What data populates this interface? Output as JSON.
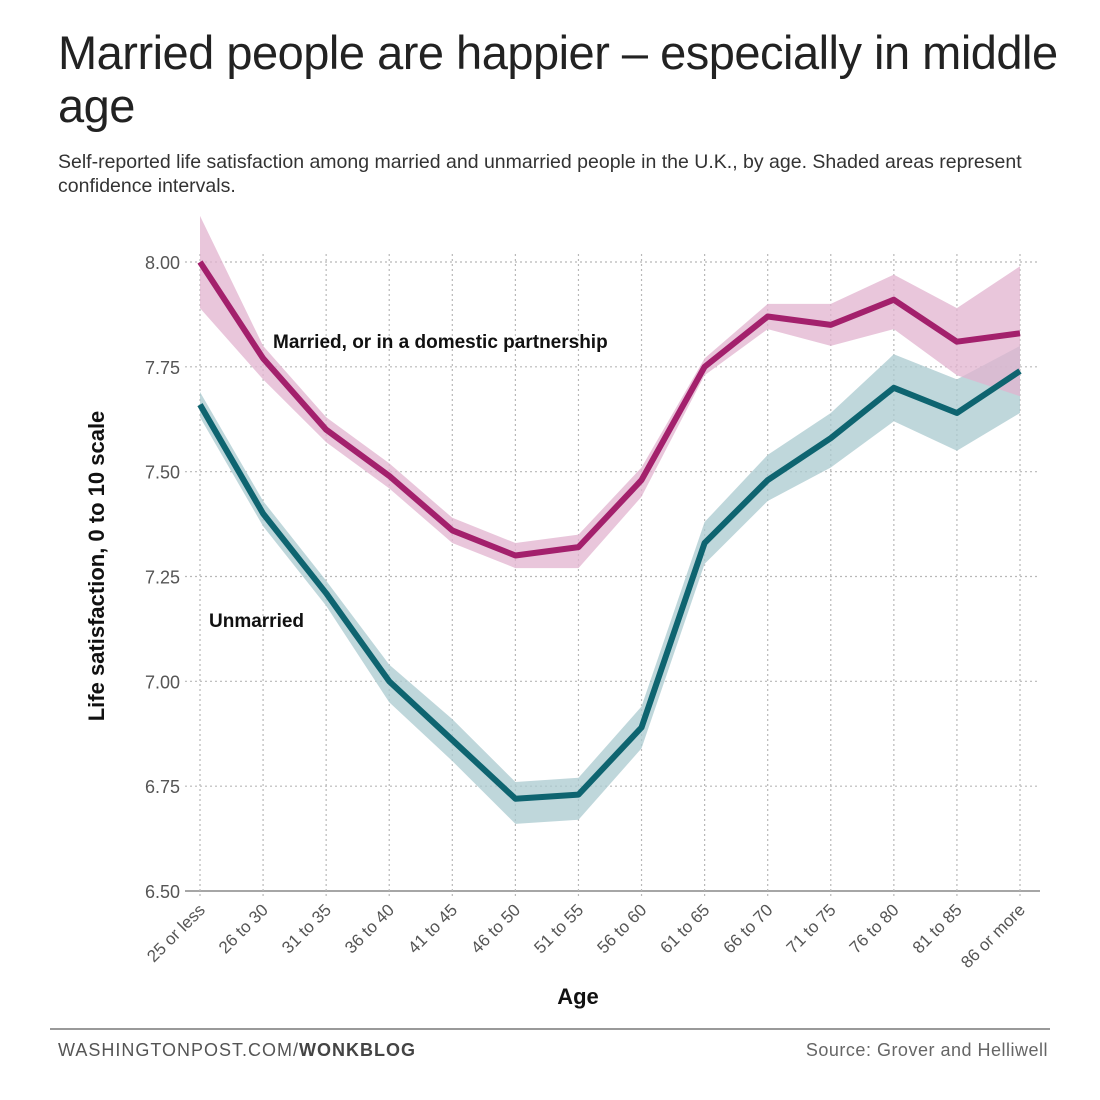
{
  "header": {
    "title": "Married people are happier – especially in middle age",
    "subtitle": "Self-reported life satisfaction among married and unmarried people in the U.K., by age. Shaded areas represent confidence intervals."
  },
  "footer": {
    "site": "WASHINGTONPOST.COM/",
    "section": "WONKBLOG",
    "source": "Source: Grover and Helliwell"
  },
  "chart_data": {
    "type": "line",
    "title": "Married people are happier – especially in middle age",
    "xlabel": "Age",
    "ylabel": "Life satisfaction, 0 to 10 scale",
    "categories": [
      "25 or less",
      "26 to 30",
      "31 to 35",
      "36 to 40",
      "41 to 45",
      "46 to 50",
      "51 to 55",
      "56 to 60",
      "61 to 65",
      "66 to 70",
      "71 to 75",
      "76 to 80",
      "81 to 85",
      "86 or more"
    ],
    "yticks": [
      "6.50",
      "6.75",
      "7.00",
      "7.25",
      "7.50",
      "7.75",
      "8.00"
    ],
    "ylim": [
      6.5,
      8.0
    ],
    "grid": true,
    "series": [
      {
        "name": "Married, or in a domestic partnership",
        "color": "#a3206c",
        "band_color": "#e2b3cf",
        "values": [
          8.0,
          7.77,
          7.6,
          7.49,
          7.36,
          7.3,
          7.32,
          7.48,
          7.75,
          7.87,
          7.85,
          7.91,
          7.81,
          7.83
        ],
        "lower": [
          7.89,
          7.72,
          7.57,
          7.46,
          7.33,
          7.27,
          7.27,
          7.44,
          7.73,
          7.84,
          7.8,
          7.84,
          7.73,
          7.68
        ],
        "upper": [
          8.11,
          7.8,
          7.63,
          7.52,
          7.39,
          7.33,
          7.35,
          7.51,
          7.77,
          7.9,
          7.9,
          7.97,
          7.89,
          7.99
        ]
      },
      {
        "name": "Unmarried",
        "color": "#0e6470",
        "band_color": "#a9c9cf",
        "values": [
          7.66,
          7.4,
          7.21,
          7.0,
          6.86,
          6.72,
          6.73,
          6.89,
          7.33,
          7.48,
          7.58,
          7.7,
          7.64,
          7.74
        ],
        "lower": [
          7.63,
          7.37,
          7.18,
          6.95,
          6.81,
          6.66,
          6.67,
          6.84,
          7.28,
          7.43,
          7.51,
          7.62,
          7.55,
          7.64
        ],
        "upper": [
          7.69,
          7.43,
          7.24,
          7.04,
          6.91,
          6.76,
          6.77,
          6.94,
          7.38,
          7.54,
          7.64,
          7.78,
          7.72,
          7.8
        ]
      }
    ]
  }
}
